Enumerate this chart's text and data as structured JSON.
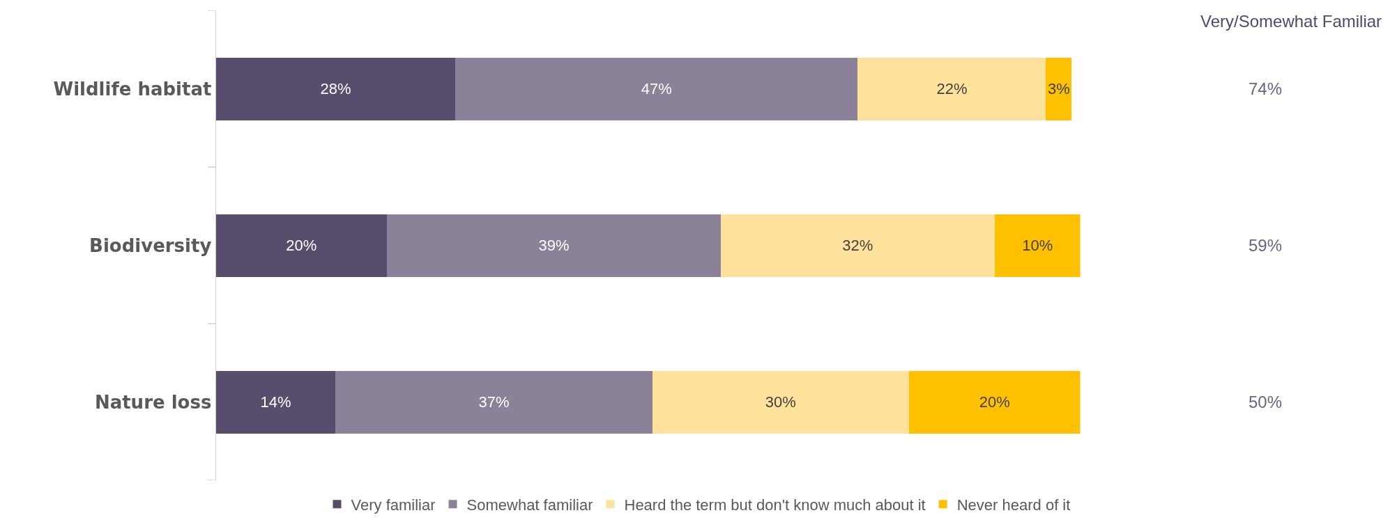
{
  "chart_data": {
    "type": "bar",
    "orientation": "horizontal",
    "stacked": true,
    "legend": "bottom",
    "categories": [
      "Wildlife habitat",
      "Biodiversity",
      "Nature loss"
    ],
    "series": [
      {
        "name": "Very familiar",
        "color": "#584d6c",
        "values": [
          28,
          20,
          14
        ],
        "value_labels": [
          "28%",
          "20%",
          "14%"
        ]
      },
      {
        "name": "Somewhat familiar",
        "color": "#8b8198",
        "values": [
          47,
          39,
          37
        ],
        "value_labels": [
          "47%",
          "39%",
          "37%"
        ]
      },
      {
        "name": "Heard the term but don't know much about it",
        "color": "#fee29b",
        "values": [
          22,
          32,
          30
        ],
        "value_labels": [
          "22%",
          "32%",
          "30%"
        ]
      },
      {
        "name": "Never heard of it",
        "color": "#ffc000",
        "values": [
          3,
          10,
          20
        ],
        "value_labels": [
          "3%",
          "10%",
          "20%"
        ]
      }
    ],
    "annotations": [
      "Very/Somewhat Familiar",
      "74%",
      "59%",
      "50%"
    ]
  }
}
